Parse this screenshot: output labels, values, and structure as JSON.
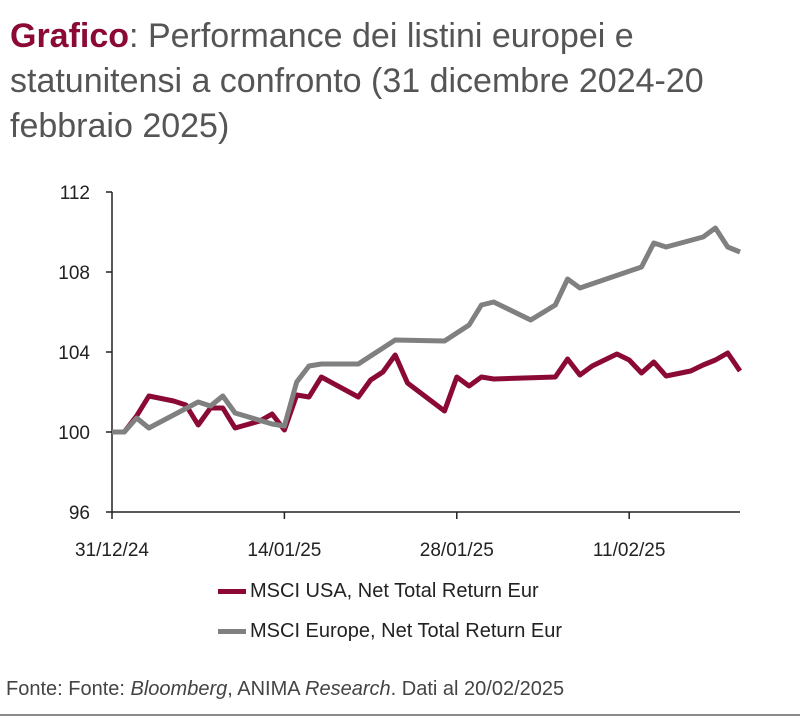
{
  "title": {
    "highlight": "Grafico",
    "text": ": Performance dei listini europei e statunitensi a confronto (31 dicembre 2024-20 febbraio 2025)"
  },
  "footer": {
    "prefix": "Fonte: Fonte: ",
    "src1": "Bloomberg",
    "mid": ", ANIMA ",
    "src2": "Research",
    "suffix": ". Dati al 20/02/2025"
  },
  "chart_data": {
    "type": "line",
    "title": "",
    "xlabel": "",
    "ylabel": "",
    "ylim": [
      96,
      112
    ],
    "yticks": [
      "96",
      "100",
      "104",
      "108",
      "112"
    ],
    "xlim": [
      "2024-12-31",
      "2025-02-20"
    ],
    "xticks": [
      {
        "date": "2024-12-31",
        "label": "31/12/24"
      },
      {
        "date": "2025-01-14",
        "label": "14/01/25"
      },
      {
        "date": "2025-01-28",
        "label": "28/01/25"
      },
      {
        "date": "2025-02-11",
        "label": "11/02/25"
      }
    ],
    "grid": false,
    "legend": "bottom",
    "series": [
      {
        "name": "MSCI USA, Net Total Return Eur",
        "color": "#8b0a35",
        "x": [
          "2024-12-31",
          "2025-01-01",
          "2025-01-02",
          "2025-01-03",
          "2025-01-05",
          "2025-01-06",
          "2025-01-07",
          "2025-01-08",
          "2025-01-09",
          "2025-01-10",
          "2025-01-12",
          "2025-01-13",
          "2025-01-14",
          "2025-01-15",
          "2025-01-16",
          "2025-01-17",
          "2025-01-20",
          "2025-01-21",
          "2025-01-22",
          "2025-01-23",
          "2025-01-24",
          "2025-01-27",
          "2025-01-28",
          "2025-01-29",
          "2025-01-30",
          "2025-01-31",
          "2025-02-05",
          "2025-02-06",
          "2025-02-07",
          "2025-02-08",
          "2025-02-10",
          "2025-02-11",
          "2025-02-12",
          "2025-02-13",
          "2025-02-14",
          "2025-02-16",
          "2025-02-17",
          "2025-02-18",
          "2025-02-19",
          "2025-02-20"
        ],
        "y": [
          100.0,
          100.0,
          100.8,
          101.8,
          101.55,
          101.35,
          100.35,
          101.2,
          101.2,
          100.2,
          100.55,
          100.9,
          100.1,
          101.85,
          101.75,
          102.75,
          101.75,
          102.6,
          103.0,
          103.85,
          102.45,
          101.05,
          102.75,
          102.3,
          102.75,
          102.65,
          102.75,
          103.65,
          102.85,
          103.3,
          103.9,
          103.6,
          102.95,
          103.5,
          102.8,
          103.05,
          103.35,
          103.6,
          103.95,
          103.05
        ]
      },
      {
        "name": "MSCI Europe, Net Total Return Eur",
        "color": "#808080",
        "x": [
          "2024-12-31",
          "2025-01-01",
          "2025-01-02",
          "2025-01-03",
          "2025-01-07",
          "2025-01-08",
          "2025-01-09",
          "2025-01-10",
          "2025-01-13",
          "2025-01-14",
          "2025-01-15",
          "2025-01-16",
          "2025-01-17",
          "2025-01-20",
          "2025-01-21",
          "2025-01-23",
          "2025-01-27",
          "2025-01-29",
          "2025-01-30",
          "2025-01-31",
          "2025-02-03",
          "2025-02-05",
          "2025-02-06",
          "2025-02-07",
          "2025-02-12",
          "2025-02-13",
          "2025-02-14",
          "2025-02-17",
          "2025-02-18",
          "2025-02-19",
          "2025-02-20"
        ],
        "y": [
          100.0,
          100.0,
          100.7,
          100.2,
          101.5,
          101.3,
          101.8,
          100.95,
          100.4,
          100.3,
          102.5,
          103.3,
          103.4,
          103.4,
          103.8,
          104.6,
          104.55,
          105.35,
          106.35,
          106.5,
          105.6,
          106.35,
          107.65,
          107.2,
          108.25,
          109.45,
          109.25,
          109.75,
          110.2,
          109.25,
          109.0
        ]
      }
    ]
  }
}
